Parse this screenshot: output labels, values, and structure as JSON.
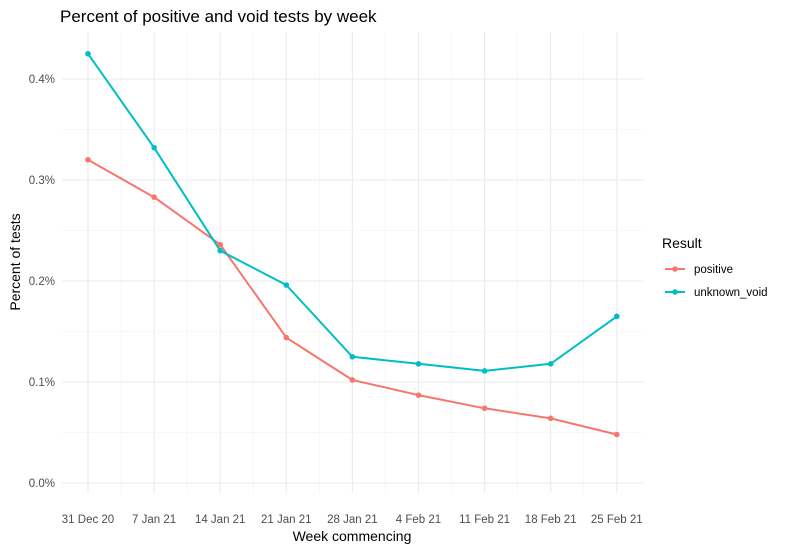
{
  "chart_data": {
    "type": "line",
    "title": "Percent of positive and void tests by week",
    "xlabel": "Week commencing",
    "ylabel": "Percent of tests",
    "categories": [
      "31 Dec 20",
      "7 Jan 21",
      "14 Jan 21",
      "21 Jan 21",
      "28 Jan 21",
      "4 Feb 21",
      "11 Feb 21",
      "18 Feb 21",
      "25 Feb 21"
    ],
    "y_ticks": [
      0.0,
      0.1,
      0.2,
      0.3,
      0.4
    ],
    "y_tick_labels": [
      "0.0%",
      "0.1%",
      "0.2%",
      "0.3%",
      "0.4%"
    ],
    "ylim": [
      -0.01,
      0.44
    ],
    "y_unit": "percent",
    "grid": true,
    "legend": {
      "title": "Result",
      "placement": "right"
    },
    "series": [
      {
        "name": "positive",
        "color": "#F8766D",
        "values": [
          0.32,
          0.283,
          0.236,
          0.144,
          0.102,
          0.087,
          0.074,
          0.064,
          0.048
        ]
      },
      {
        "name": "unknown_void",
        "color": "#00BFC4",
        "values": [
          0.425,
          0.332,
          0.23,
          0.196,
          0.125,
          0.118,
          0.111,
          0.118,
          0.165
        ]
      }
    ]
  }
}
